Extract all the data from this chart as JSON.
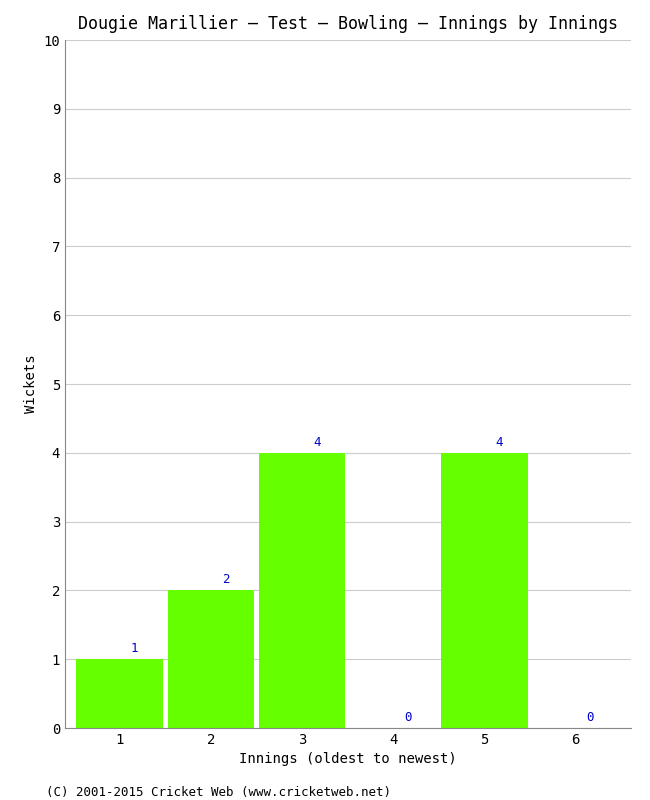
{
  "title": "Dougie Marillier – Test – Bowling – Innings by Innings",
  "xlabel": "Innings (oldest to newest)",
  "ylabel": "Wickets",
  "categories": [
    "1",
    "2",
    "3",
    "4",
    "5",
    "6"
  ],
  "values": [
    1,
    2,
    4,
    0,
    4,
    0
  ],
  "bar_color": "#66ff00",
  "bar_edge_color": "#66ff00",
  "label_color": "#0000cc",
  "ylim": [
    0,
    10
  ],
  "yticks": [
    0,
    1,
    2,
    3,
    4,
    5,
    6,
    7,
    8,
    9,
    10
  ],
  "grid_color": "#cccccc",
  "bg_color": "#ffffff",
  "title_fontsize": 12,
  "axis_label_fontsize": 10,
  "tick_fontsize": 10,
  "bar_label_fontsize": 9,
  "footer_text": "(C) 2001-2015 Cricket Web (www.cricketweb.net)",
  "footer_fontsize": 9
}
